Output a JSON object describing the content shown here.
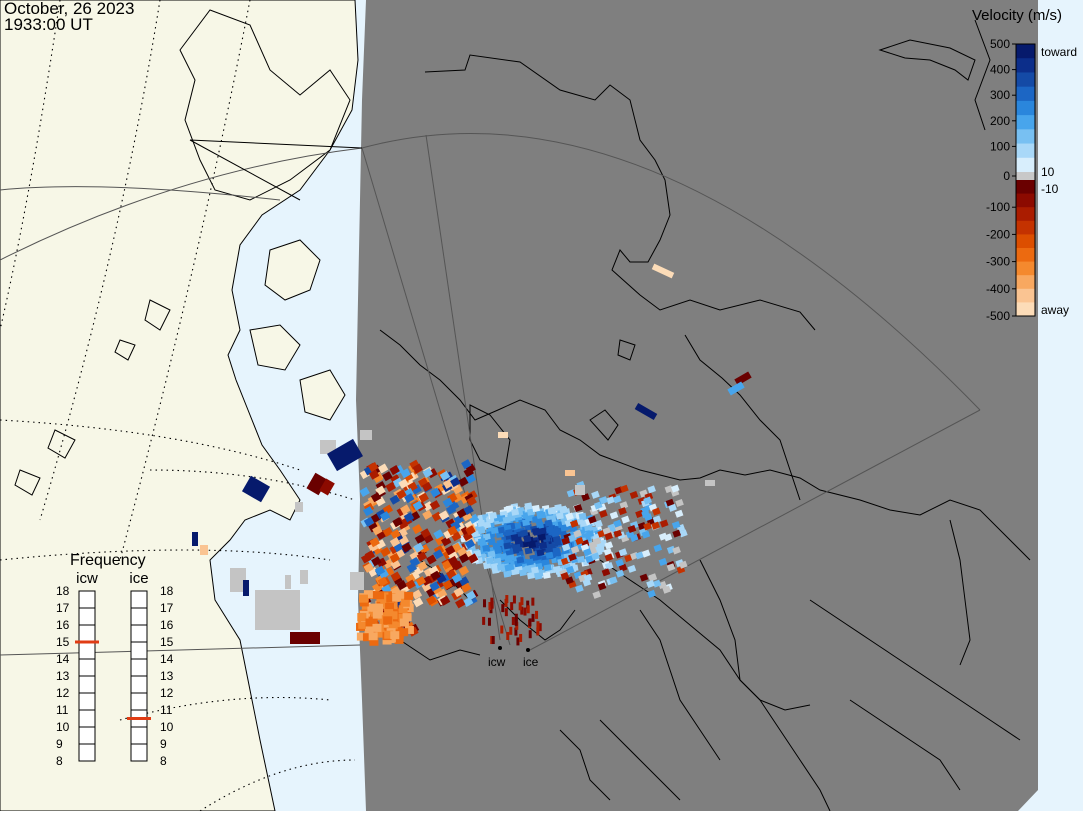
{
  "header": {
    "date": "October, 26 2023",
    "time": "1933:00 UT"
  },
  "colorbar": {
    "title": "Velocity (m/s)",
    "toward_label": "toward",
    "away_label": "away",
    "ticks": [
      {
        "value": 500,
        "label": "500"
      },
      {
        "value": 400,
        "label": "400"
      },
      {
        "value": 300,
        "label": "300"
      },
      {
        "value": 200,
        "label": "200"
      },
      {
        "value": 100,
        "label": "100"
      },
      {
        "value": 0,
        "label": "0"
      },
      {
        "value": -100,
        "label": "-100"
      },
      {
        "value": -200,
        "label": "-200"
      },
      {
        "value": -300,
        "label": "-300"
      },
      {
        "value": -400,
        "label": "-400"
      },
      {
        "value": -500,
        "label": "-500"
      }
    ],
    "threshold_pos": "10",
    "threshold_neg": "-10",
    "toward_colors": [
      "#d8eefc",
      "#a9d8f8",
      "#78c0f2",
      "#48a5ec",
      "#2a86dc",
      "#1c66c4",
      "#144aa6",
      "#0c2e8a",
      "#061a6c"
    ],
    "away_colors": [
      "#6a0000",
      "#8c0a00",
      "#aa1c00",
      "#c43200",
      "#dc4e00",
      "#ec6a10",
      "#f4892e",
      "#f8a860",
      "#fac492",
      "#fcdcb8"
    ]
  },
  "frequency": {
    "title": "Frequency",
    "radars": [
      {
        "name": "icw",
        "value": 15
      },
      {
        "name": "ice",
        "value": 10.5
      }
    ],
    "scale": [
      "18",
      "17",
      "16",
      "15",
      "14",
      "13",
      "12",
      "11",
      "10",
      "9",
      "8"
    ]
  },
  "radar_labels": [
    "icw",
    "ice"
  ],
  "colors": {
    "land": "#f7f7e7",
    "ocean": "#e6f4fd",
    "night": "#7f7f7f",
    "coast": "#000000",
    "ground_scatter": "#c4c4c4",
    "freq_marker": "#e03c14"
  }
}
